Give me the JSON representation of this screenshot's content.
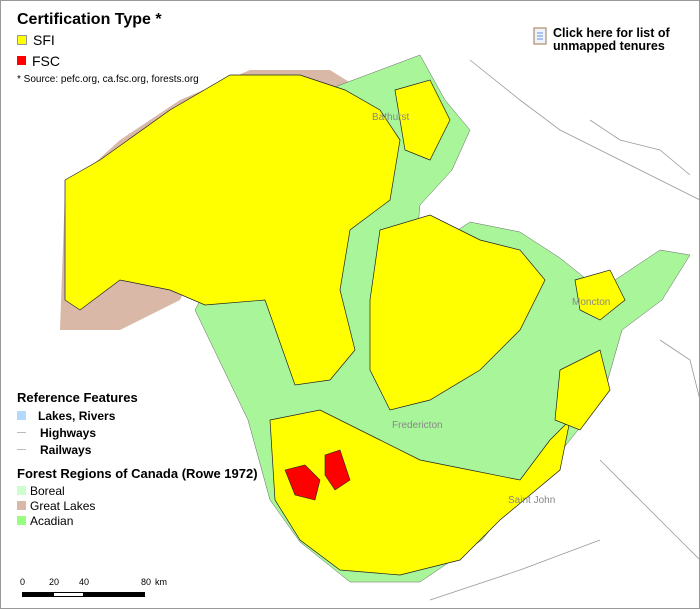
{
  "certification": {
    "title": "Certification Type *",
    "items": [
      {
        "label": "SFI",
        "color": "#ffff00"
      },
      {
        "label": "FSC",
        "color": "#ff0000"
      }
    ],
    "source": "* Source: pefc.org, ca.fsc.org, forests.org"
  },
  "link": {
    "label_line1": "Click here for list of",
    "label_line2": "unmapped tenures",
    "icon": "notepad-icon"
  },
  "reference": {
    "title": "Reference Features",
    "items": [
      {
        "label": "Lakes, Rivers",
        "color": "#b3d9ff"
      },
      {
        "label": "Highways"
      },
      {
        "label": "Railways"
      }
    ]
  },
  "forest_regions": {
    "title": "Forest Regions of Canada (Rowe 1972)",
    "items": [
      {
        "label": "Boreal",
        "color": "#ccffcc"
      },
      {
        "label": "Great Lakes",
        "color": "#d9b8a8"
      },
      {
        "label": "Acadian",
        "color": "#99ff80"
      }
    ]
  },
  "scale_bar": {
    "ticks": [
      "0",
      "20",
      "40",
      "80"
    ],
    "unit": "km"
  },
  "cities": [
    "Bathurst",
    "Moncton",
    "Fredericton",
    "Saint John"
  ]
}
